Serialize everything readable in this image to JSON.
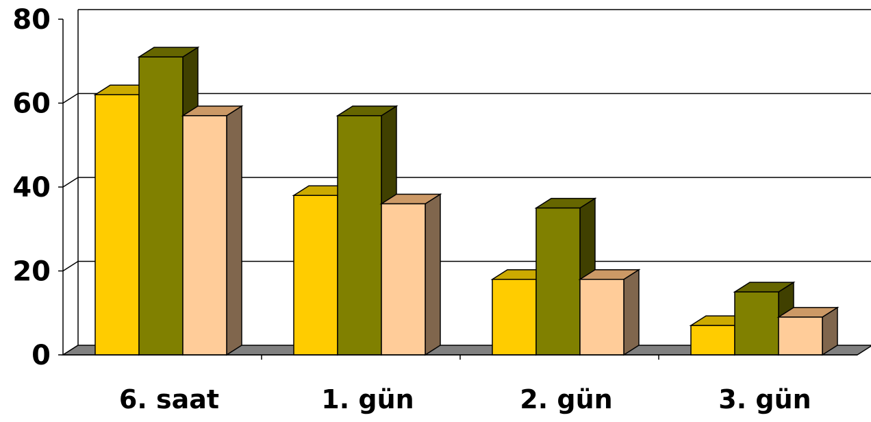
{
  "chart_data": {
    "type": "bar",
    "title": "",
    "xlabel": "",
    "ylabel": "",
    "ylim": [
      0,
      80
    ],
    "y_ticks": [
      "0",
      "20",
      "40",
      "60",
      "80"
    ],
    "categories": [
      "6. saat",
      "1. gün",
      "2. gün",
      "3. gün"
    ],
    "grid": true,
    "style": "3d-clustered",
    "series": [
      {
        "values": [
          62,
          38,
          18,
          7
        ],
        "color": "#ffcc00",
        "top_color": "#ccaa00",
        "side_color": "#b38f00"
      },
      {
        "values": [
          71,
          57,
          35,
          15
        ],
        "color": "#808000",
        "top_color": "#666600",
        "side_color": "#404000"
      },
      {
        "values": [
          57,
          36,
          18,
          9
        ],
        "color": "#ffcc99",
        "top_color": "#cc9966",
        "side_color": "#80664d"
      }
    ]
  }
}
